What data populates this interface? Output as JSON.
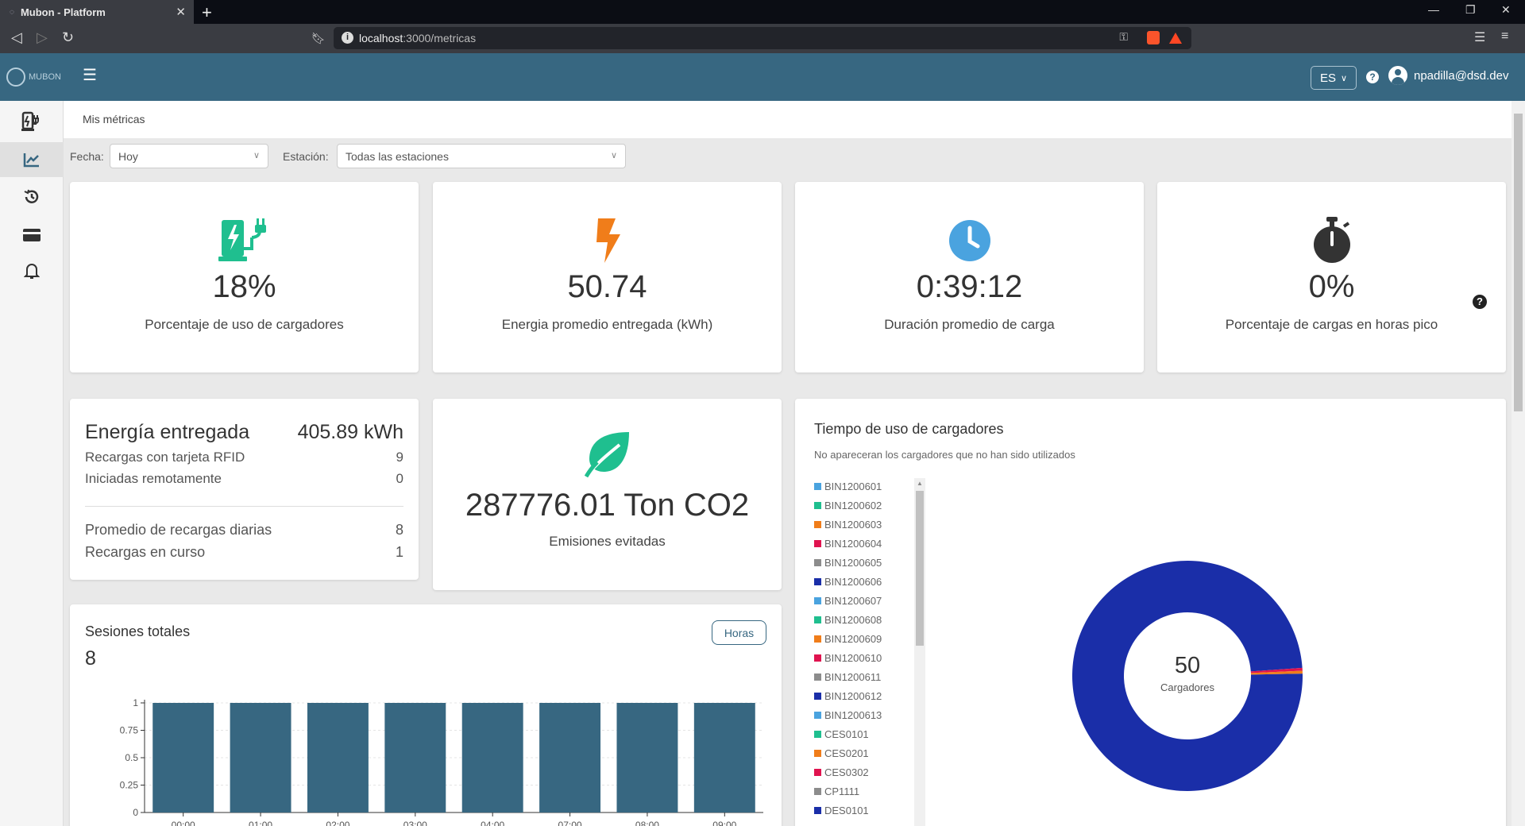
{
  "browser": {
    "tab_title": "Mubon - Platform",
    "url_host": "localhost",
    "url_path": ":3000/metricas"
  },
  "header": {
    "logo_text": "MUBON",
    "language": "ES",
    "user_name": "npadilla@dsd.dev"
  },
  "sidebar": {
    "items": [
      {
        "name": "charger-icon",
        "active": false
      },
      {
        "name": "chart-icon",
        "active": true
      },
      {
        "name": "history-icon",
        "active": false
      },
      {
        "name": "card-icon",
        "active": false
      },
      {
        "name": "bell-icon",
        "active": false
      }
    ]
  },
  "breadcrumb": "Mis métricas",
  "filters": {
    "date_label": "Fecha:",
    "date_value": "Hoy",
    "station_label": "Estación:",
    "station_value": "Todas las estaciones"
  },
  "kpis": [
    {
      "value": "18%",
      "label": "Porcentaje de uso de cargadores",
      "icon": "ev-charger-icon",
      "color": "#1fbf8f"
    },
    {
      "value": "50.74",
      "label": "Energia promedio entregada (kWh)",
      "icon": "lightning-icon",
      "color": "#f07d1a"
    },
    {
      "value": "0:39:12",
      "label": "Duración promedio de carga",
      "icon": "clock-icon",
      "color": "#4aa3df"
    },
    {
      "value": "0%",
      "label": "Porcentaje de cargas en horas pico",
      "icon": "stopwatch-icon",
      "color": "#333333"
    }
  ],
  "energy": {
    "title": "Energía entregada",
    "total": "405.89 kWh",
    "rows": [
      {
        "label": "Recargas con tarjeta RFID",
        "value": "9"
      },
      {
        "label": "Iniciadas remotamente",
        "value": "0"
      },
      {
        "label": "Promedio de recargas diarias",
        "value": "8"
      },
      {
        "label": "Recargas en curso",
        "value": "1"
      }
    ]
  },
  "co2": {
    "value": "287776.01 Ton CO2",
    "label": "Emisiones evitadas",
    "color": "#1fbf8f"
  },
  "sessions": {
    "title": "Sesiones totales",
    "count": "8",
    "mode_button": "Horas"
  },
  "usage": {
    "title": "Tiempo de uso de cargadores",
    "subtitle": "No apareceran los cargadores que no han sido utilizados",
    "center_value": "50",
    "center_label": "Cargadores",
    "legend": [
      {
        "name": "BIN1200601",
        "color": "#4aa3df"
      },
      {
        "name": "BIN1200602",
        "color": "#1fbf8f"
      },
      {
        "name": "BIN1200603",
        "color": "#f07d1a"
      },
      {
        "name": "BIN1200604",
        "color": "#e0134f"
      },
      {
        "name": "BIN1200605",
        "color": "#8c8c8c"
      },
      {
        "name": "BIN1200606",
        "color": "#1a2ea8"
      },
      {
        "name": "BIN1200607",
        "color": "#4aa3df"
      },
      {
        "name": "BIN1200608",
        "color": "#1fbf8f"
      },
      {
        "name": "BIN1200609",
        "color": "#f07d1a"
      },
      {
        "name": "BIN1200610",
        "color": "#e0134f"
      },
      {
        "name": "BIN1200611",
        "color": "#8c8c8c"
      },
      {
        "name": "BIN1200612",
        "color": "#1a2ea8"
      },
      {
        "name": "BIN1200613",
        "color": "#4aa3df"
      },
      {
        "name": "CES0101",
        "color": "#1fbf8f"
      },
      {
        "name": "CES0201",
        "color": "#f07d1a"
      },
      {
        "name": "CES0302",
        "color": "#e0134f"
      },
      {
        "name": "CP1111",
        "color": "#8c8c8c"
      },
      {
        "name": "DES0101",
        "color": "#1a2ea8"
      }
    ]
  },
  "chart_data": [
    {
      "type": "bar",
      "categories": [
        "00:00",
        "01:00",
        "02:00",
        "03:00",
        "04:00",
        "07:00",
        "08:00",
        "09:00"
      ],
      "values": [
        1,
        1,
        1,
        1,
        1,
        1,
        1,
        1
      ],
      "yticks": [
        "0",
        "0.25",
        "0.5",
        "0.75",
        "1"
      ],
      "ylim": [
        0,
        1
      ],
      "bar_color": "#376781",
      "grid": true
    },
    {
      "type": "pie",
      "slices": [
        {
          "value": 49.6,
          "color": "#1a2ea8"
        },
        {
          "value": 0.2,
          "color": "#e0134f"
        },
        {
          "value": 0.2,
          "color": "#f07d1a"
        }
      ]
    }
  ]
}
